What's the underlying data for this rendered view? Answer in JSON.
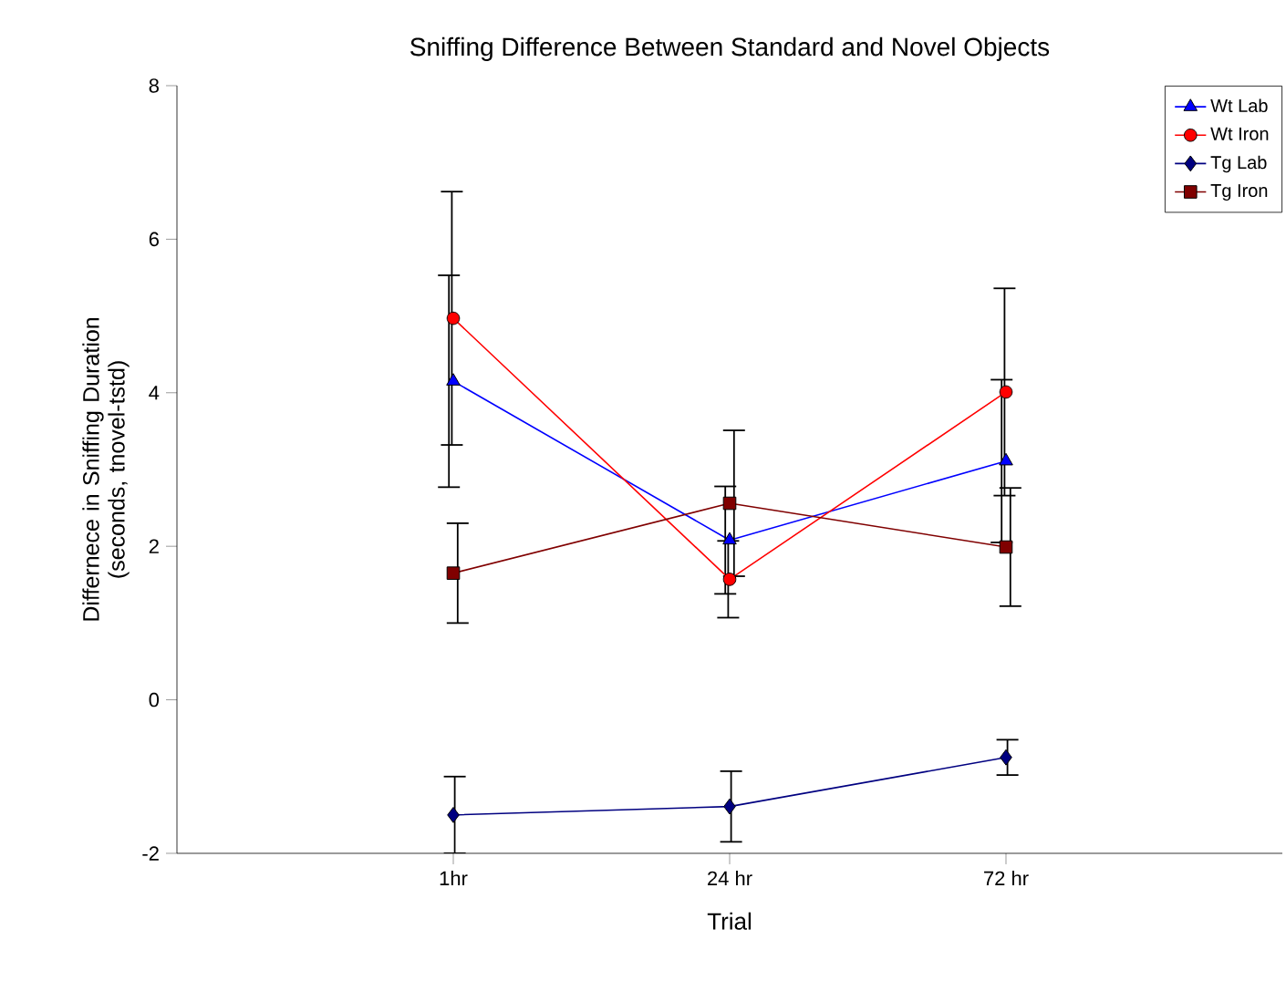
{
  "chart_data": {
    "type": "line",
    "title": "Sniffing Difference Between Standard and Novel Objects",
    "xlabel": "Trial",
    "ylabel": "Differnece in Sniffing Duration (seconds, tnovel-tstd)",
    "categories": [
      "1hr",
      "24 hr",
      "72 hr"
    ],
    "ylim": [
      -2,
      8
    ],
    "yticks": [
      -2,
      0,
      2,
      4,
      6,
      8
    ],
    "legend": "top right",
    "grid": false,
    "series": [
      {
        "name": "Wt Lab",
        "color": "#0000ff",
        "marker": "triangle",
        "values": [
          4.15,
          2.08,
          3.11
        ],
        "errors": [
          1.38,
          0.7,
          1.06
        ]
      },
      {
        "name": "Wt Iron",
        "color": "#ff0000",
        "marker": "circle",
        "values": [
          4.97,
          1.57,
          4.01
        ],
        "errors": [
          1.65,
          0.5,
          1.35
        ]
      },
      {
        "name": "Tg Lab",
        "color": "#000080",
        "marker": "diamond",
        "values": [
          -1.5,
          -1.39,
          -0.75
        ],
        "errors": [
          0.5,
          0.46,
          0.23
        ]
      },
      {
        "name": "Tg Iron",
        "color": "#800000",
        "marker": "square",
        "values": [
          1.65,
          2.56,
          1.99
        ],
        "errors": [
          0.65,
          0.95,
          0.77
        ]
      }
    ]
  }
}
